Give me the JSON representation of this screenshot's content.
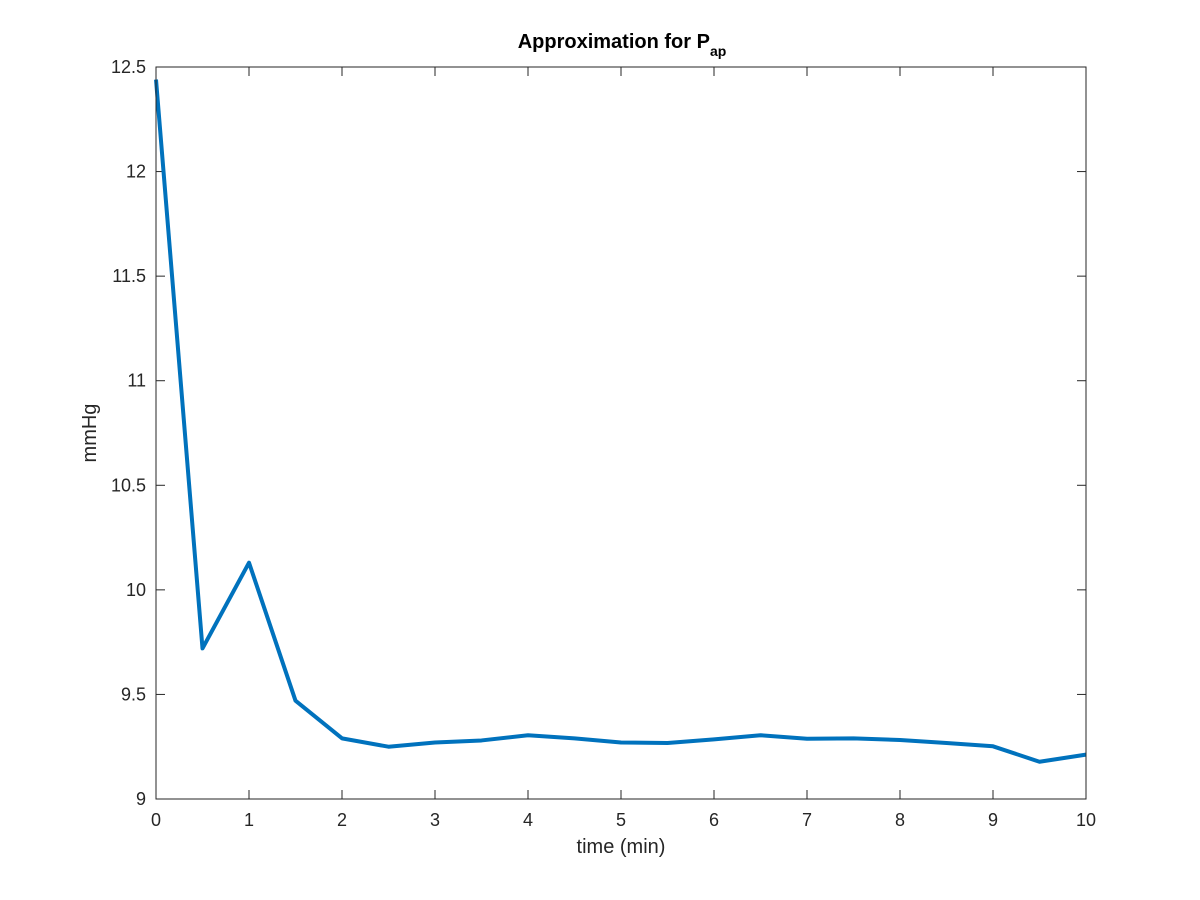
{
  "chart_data": {
    "type": "line",
    "title": {
      "main": "Approximation for P",
      "subscript": "ap"
    },
    "xlabel": "time (min)",
    "ylabel": "mmHg",
    "xlim": [
      0,
      10
    ],
    "ylim": [
      9,
      12.5
    ],
    "xticks": [
      0,
      1,
      2,
      3,
      4,
      5,
      6,
      7,
      8,
      9,
      10
    ],
    "yticks": [
      9,
      9.5,
      10,
      10.5,
      11,
      11.5,
      12,
      12.5
    ],
    "xtick_labels": [
      "0",
      "1",
      "2",
      "3",
      "4",
      "5",
      "6",
      "7",
      "8",
      "9",
      "10"
    ],
    "ytick_labels": [
      "9",
      "9.5",
      "10",
      "10.5",
      "11",
      "11.5",
      "12",
      "12.5"
    ],
    "grid": false,
    "series": [
      {
        "color": "#0072BD",
        "x": [
          0,
          0.5,
          1,
          1.5,
          2,
          2.5,
          3,
          3.5,
          4,
          4.5,
          5,
          5.5,
          6,
          6.5,
          7,
          7.5,
          8,
          8.5,
          9,
          9.5,
          10
        ],
        "y": [
          12.44,
          9.72,
          10.13,
          9.47,
          9.29,
          9.25,
          9.27,
          9.28,
          9.305,
          9.29,
          9.27,
          9.268,
          9.285,
          9.305,
          9.288,
          9.29,
          9.282,
          9.268,
          9.252,
          9.178,
          9.212
        ]
      }
    ]
  }
}
